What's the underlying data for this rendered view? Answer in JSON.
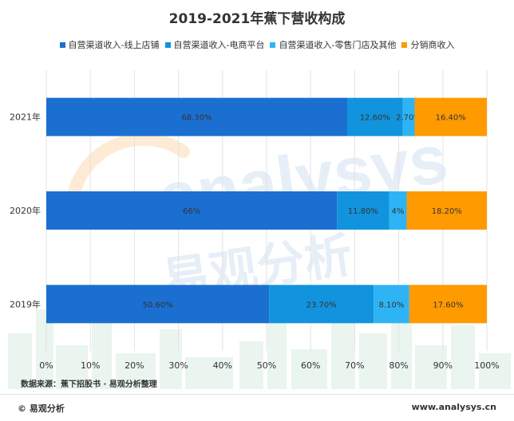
{
  "chart_data": {
    "type": "stacked-bar-horizontal",
    "title": "2019-2021年蕉下营收构成",
    "categories": [
      "2021年",
      "2020年",
      "2019年"
    ],
    "series": [
      {
        "name": "自营渠道收入-线上店铺",
        "color": "#1b6fd1",
        "values": [
          68.3,
          66,
          50.6
        ],
        "labels": [
          "68.30%",
          "66%",
          "50.60%"
        ]
      },
      {
        "name": "自营渠道收入-电商平台",
        "color": "#1293dd",
        "values": [
          12.6,
          11.8,
          23.7
        ],
        "labels": [
          "12.60%",
          "11.80%",
          "23.70%"
        ]
      },
      {
        "name": "自营渠道收入-零售门店及其他",
        "color": "#2eb4f5",
        "values": [
          2.7,
          4,
          8.1
        ],
        "labels": [
          "2.70%",
          "4%",
          "8.10%"
        ]
      },
      {
        "name": "分销商收入",
        "color": "#ff9a00",
        "values": [
          16.4,
          18.2,
          17.6
        ],
        "labels": [
          "16.40%",
          "18.20%",
          "17.60%"
        ]
      }
    ],
    "xlim": [
      0,
      100
    ],
    "x_ticks": [
      "0%",
      "10%",
      "20%",
      "30%",
      "40%",
      "50%",
      "60%",
      "70%",
      "80%",
      "90%",
      "100%"
    ],
    "grid": true,
    "legend_position": "top"
  },
  "source_text": "数据来源：蕉下招股书 · 易观分析整理",
  "footer": {
    "logo_text": "© 易观分析",
    "website": "www.analysys.cn"
  },
  "watermark": {
    "brand": "analysys",
    "cn": "易观分析"
  }
}
